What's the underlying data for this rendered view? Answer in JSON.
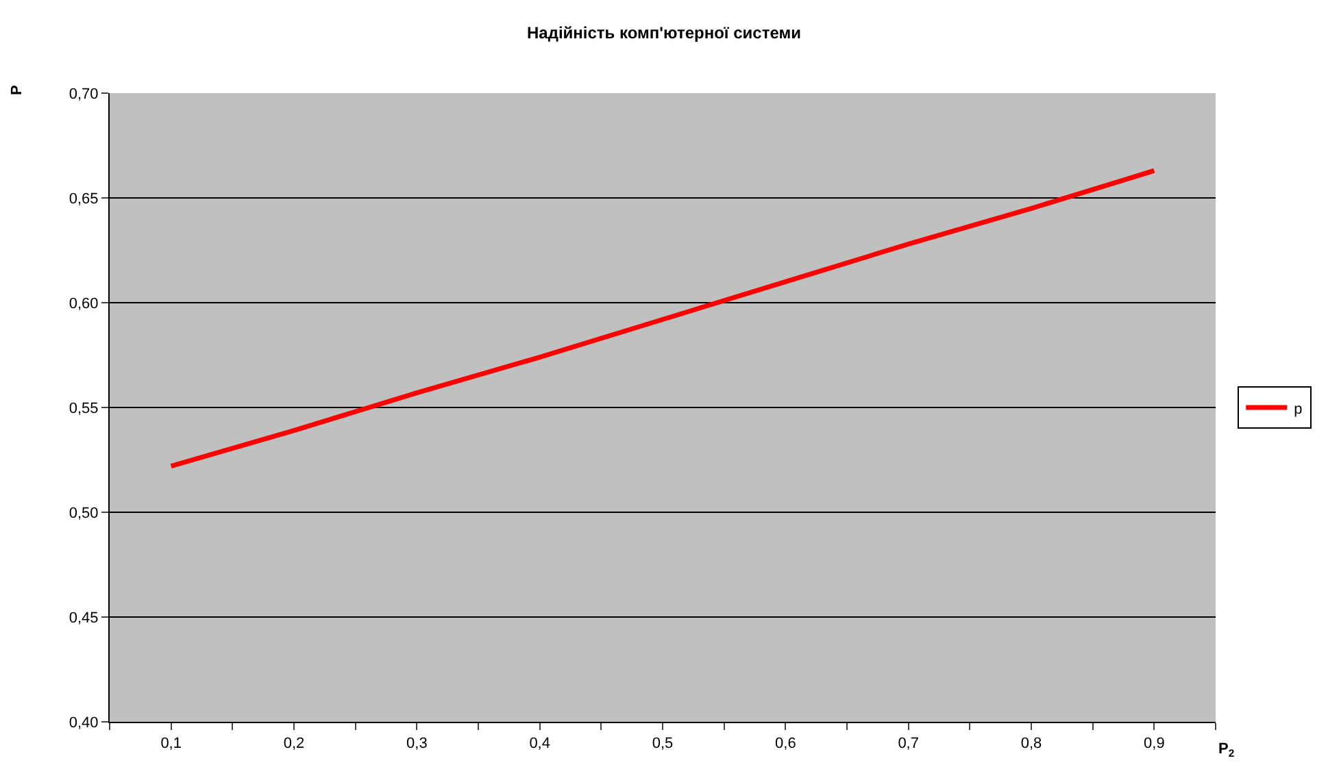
{
  "chart_data": {
    "type": "line",
    "title": "Надійність комп'ютерної системи",
    "xlabel": "P$_{2}$",
    "ylabel": "P",
    "x": [
      0.1,
      0.2,
      0.3,
      0.4,
      0.5,
      0.6,
      0.7,
      0.8,
      0.9
    ],
    "series": [
      {
        "name": "p",
        "color": "#ff0000",
        "values": [
          0.522,
          0.539,
          0.557,
          0.574,
          0.592,
          0.61,
          0.628,
          0.645,
          0.663
        ]
      }
    ],
    "xlim": [
      0.05,
      0.95
    ],
    "xticks": [
      {
        "value": 0.05,
        "label": null
      },
      {
        "value": 0.1,
        "label": "0,1"
      },
      {
        "value": 0.15,
        "label": null
      },
      {
        "value": 0.2,
        "label": "0,2"
      },
      {
        "value": 0.25,
        "label": null
      },
      {
        "value": 0.3,
        "label": "0,3"
      },
      {
        "value": 0.35,
        "label": null
      },
      {
        "value": 0.4,
        "label": "0,4"
      },
      {
        "value": 0.45,
        "label": null
      },
      {
        "value": 0.5,
        "label": "0,5"
      },
      {
        "value": 0.55,
        "label": null
      },
      {
        "value": 0.6,
        "label": "0,6"
      },
      {
        "value": 0.65,
        "label": null
      },
      {
        "value": 0.7,
        "label": "0,7"
      },
      {
        "value": 0.75,
        "label": null
      },
      {
        "value": 0.8,
        "label": "0,8"
      },
      {
        "value": 0.85,
        "label": null
      },
      {
        "value": 0.9,
        "label": "0,9"
      },
      {
        "value": 0.95,
        "label": null
      }
    ],
    "ylim": [
      0.4,
      0.7
    ],
    "yticks": [
      {
        "value": 0.4,
        "label": "0,40"
      },
      {
        "value": 0.45,
        "label": "0,45"
      },
      {
        "value": 0.5,
        "label": "0,50"
      },
      {
        "value": 0.55,
        "label": "0,55"
      },
      {
        "value": 0.6,
        "label": "0,60"
      },
      {
        "value": 0.65,
        "label": "0,65"
      },
      {
        "value": 0.7,
        "label": "0,70"
      }
    ],
    "grid": "y",
    "legend": "right",
    "marker": "none",
    "line_style": "solid"
  }
}
